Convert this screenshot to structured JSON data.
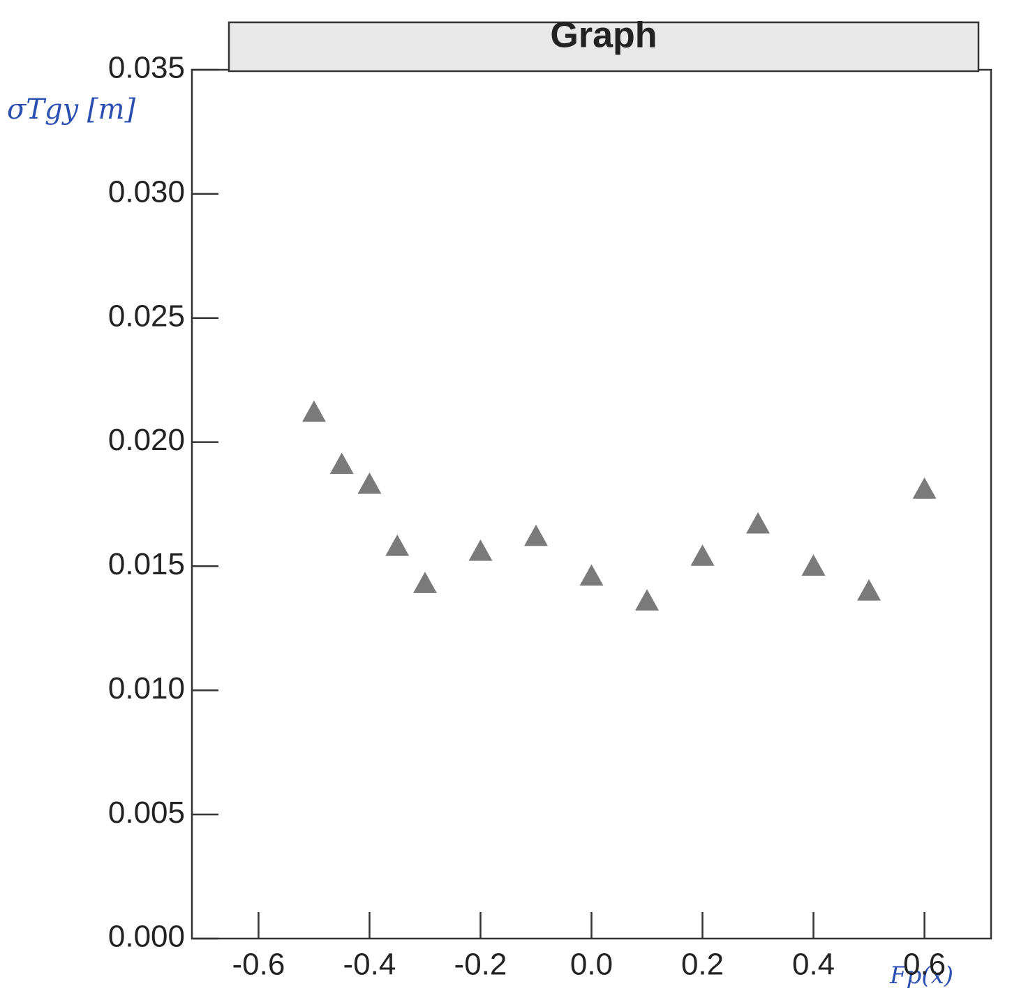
{
  "chart_data": {
    "type": "scatter",
    "title": "Graph",
    "y_label": "σTgy [m]",
    "x_label": "Fp(x)",
    "marker": "triangle",
    "color": "#7a7a7a",
    "x": [
      -0.5,
      -0.45,
      -0.4,
      -0.35,
      -0.3,
      -0.2,
      -0.1,
      0.0,
      0.1,
      0.2,
      0.3,
      0.4,
      0.5,
      0.6
    ],
    "values": [
      0.0212,
      0.0191,
      0.0183,
      0.0158,
      0.0143,
      0.0156,
      0.0162,
      0.0146,
      0.0136,
      0.0154,
      0.0167,
      0.015,
      0.014,
      0.0181
    ],
    "xlim": [
      -0.72,
      0.72
    ],
    "ylim": [
      0,
      0.035
    ],
    "xticks": [
      -0.6,
      -0.4,
      -0.2,
      {
        "value": 0,
        "label": "0.0"
      },
      0.2,
      0.4,
      0.6
    ],
    "yticks": [
      {
        "value": 0,
        "label": "0.000"
      },
      0.005,
      {
        "value": 0.01,
        "label": "0.010"
      },
      0.015,
      {
        "value": 0.02,
        "label": "0.020"
      },
      0.025,
      {
        "value": 0.03,
        "label": "0.030"
      },
      0.035
    ]
  }
}
